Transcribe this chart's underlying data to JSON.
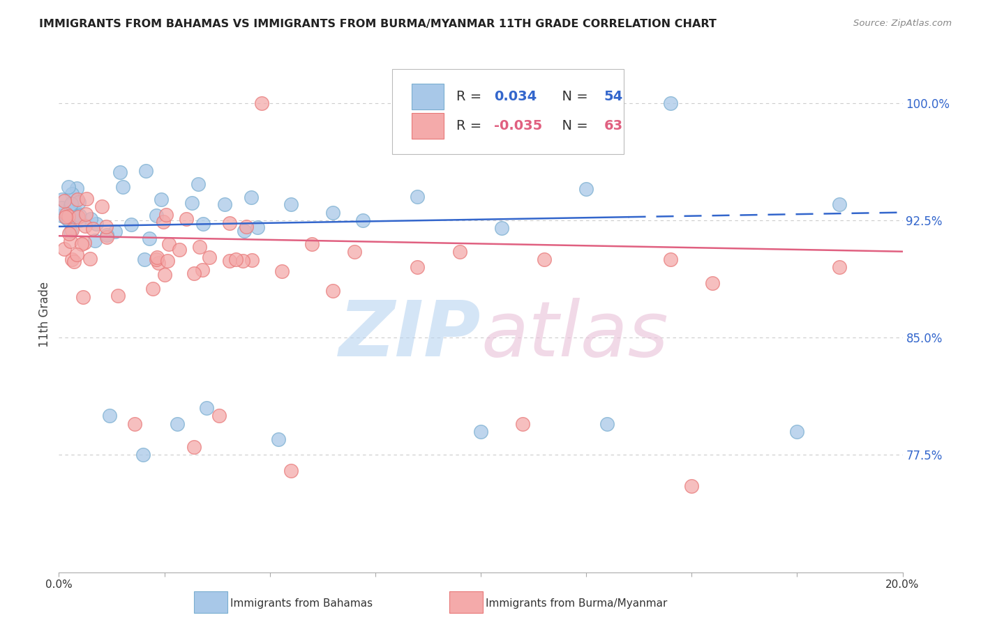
{
  "title": "IMMIGRANTS FROM BAHAMAS VS IMMIGRANTS FROM BURMA/MYANMAR 11TH GRADE CORRELATION CHART",
  "source": "Source: ZipAtlas.com",
  "ylabel": "11th Grade",
  "right_yticks": [
    77.5,
    85.0,
    92.5,
    100.0
  ],
  "xlim": [
    0.0,
    20.0
  ],
  "ylim": [
    70.0,
    103.0
  ],
  "blue_label": "Immigrants from Bahamas",
  "pink_label": "Immigrants from Burma/Myanmar",
  "r_blue": "0.034",
  "n_blue": "54",
  "r_pink": "-0.035",
  "n_pink": "63",
  "blue_color": "#a8c8e8",
  "pink_color": "#f4aaaa",
  "blue_edge": "#7aaed0",
  "pink_edge": "#e87878",
  "trend_blue_color": "#3366cc",
  "trend_pink_color": "#e06080",
  "legend_r_color_blue": "#3366cc",
  "legend_r_color_pink": "#e06080",
  "legend_n_color": "#333333",
  "legend_num_color_blue": "#3366cc",
  "legend_num_color_pink": "#e06080",
  "watermark_zip_color": "#b8d4f0",
  "watermark_atlas_color": "#e8c0d8",
  "grid_color": "#cccccc",
  "axis_text_color": "#3366cc",
  "title_color": "#222222",
  "source_color": "#888888",
  "blue_trend_y0": 92.1,
  "blue_trend_y1": 93.0,
  "pink_trend_y0": 91.5,
  "pink_trend_y1": 90.5,
  "solid_end_x": 13.5
}
